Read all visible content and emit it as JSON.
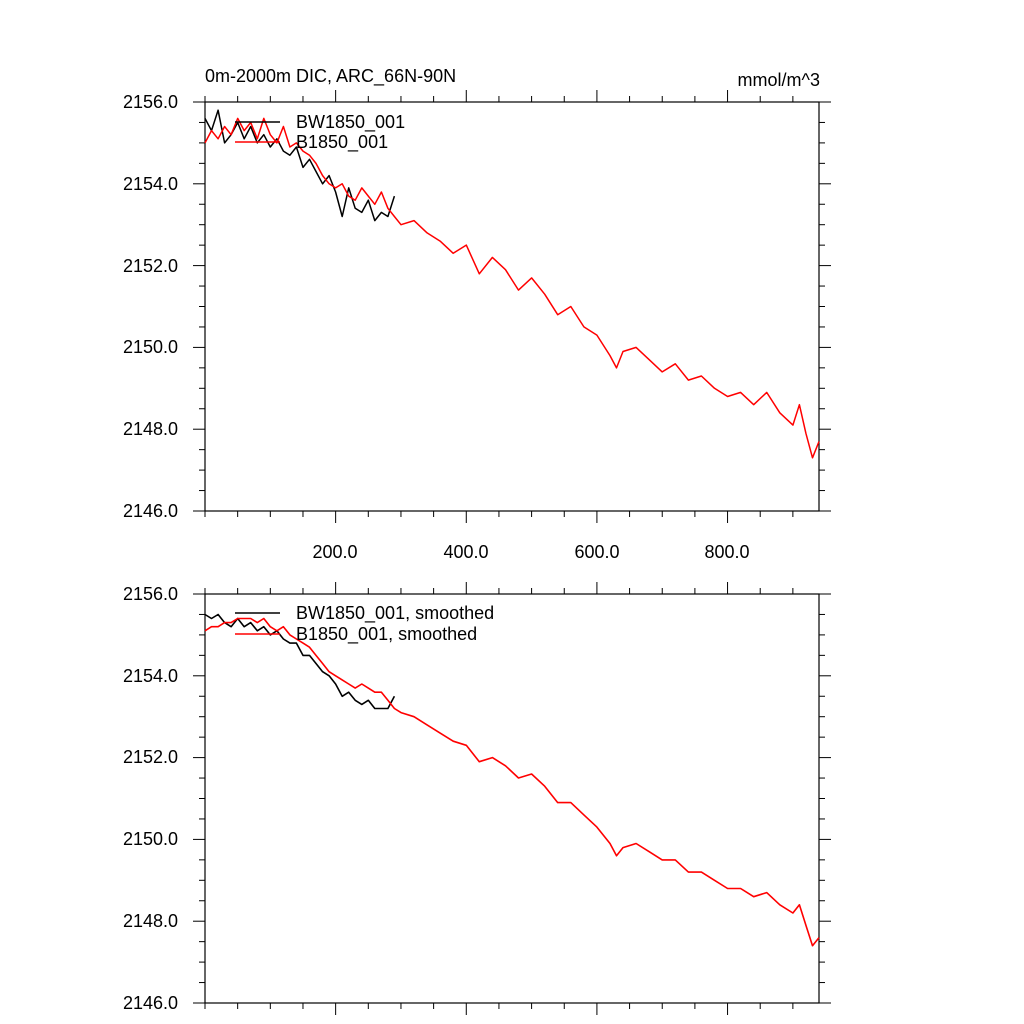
{
  "chart_data": [
    {
      "type": "line",
      "title": "0m-2000m DIC, ARC_66N-90N",
      "units": "mmol/m^3",
      "xlim": [
        0,
        940
      ],
      "ylim": [
        2146,
        2156
      ],
      "x_ticks": [
        200,
        400,
        600,
        800
      ],
      "x_tick_labels": [
        "200.0",
        "400.0",
        "600.0",
        "800.0"
      ],
      "y_ticks": [
        2146,
        2148,
        2150,
        2152,
        2154,
        2156
      ],
      "y_tick_labels": [
        "2146.0",
        "2148.0",
        "2150.0",
        "2152.0",
        "2154.0",
        "2156.0"
      ],
      "legend": [
        "BW1850_001",
        "B1850_001"
      ],
      "series": [
        {
          "name": "BW1850_001",
          "color": "#000000",
          "x": [
            0,
            10,
            20,
            30,
            40,
            50,
            60,
            70,
            80,
            90,
            100,
            110,
            120,
            130,
            140,
            150,
            160,
            170,
            180,
            190,
            200,
            210,
            220,
            230,
            240,
            250,
            260,
            270,
            280,
            290
          ],
          "y": [
            2155.6,
            2155.3,
            2155.8,
            2155.0,
            2155.2,
            2155.5,
            2155.1,
            2155.4,
            2155.0,
            2155.2,
            2154.9,
            2155.1,
            2154.8,
            2154.7,
            2154.9,
            2154.4,
            2154.6,
            2154.3,
            2154.0,
            2154.2,
            2153.8,
            2153.2,
            2153.9,
            2153.4,
            2153.3,
            2153.6,
            2153.1,
            2153.3,
            2153.2,
            2153.7
          ]
        },
        {
          "name": "B1850_001",
          "color": "#ff0000",
          "x": [
            0,
            10,
            20,
            30,
            40,
            50,
            60,
            70,
            80,
            90,
            100,
            110,
            120,
            130,
            140,
            150,
            160,
            170,
            180,
            190,
            200,
            210,
            220,
            230,
            240,
            250,
            260,
            270,
            280,
            290,
            300,
            320,
            340,
            360,
            380,
            400,
            420,
            440,
            460,
            480,
            500,
            520,
            540,
            560,
            580,
            600,
            620,
            630,
            640,
            660,
            680,
            700,
            720,
            740,
            760,
            780,
            800,
            820,
            840,
            860,
            880,
            900,
            910,
            920,
            930,
            940
          ],
          "y": [
            2155.0,
            2155.3,
            2155.1,
            2155.4,
            2155.2,
            2155.6,
            2155.3,
            2155.5,
            2155.1,
            2155.6,
            2155.2,
            2155.0,
            2155.4,
            2154.9,
            2155.0,
            2154.8,
            2154.7,
            2154.5,
            2154.2,
            2154.0,
            2153.9,
            2154.0,
            2153.7,
            2153.6,
            2153.9,
            2153.7,
            2153.5,
            2153.8,
            2153.4,
            2153.2,
            2153.0,
            2153.1,
            2152.8,
            2152.6,
            2152.3,
            2152.5,
            2151.8,
            2152.2,
            2151.9,
            2151.4,
            2151.7,
            2151.3,
            2150.8,
            2151.0,
            2150.5,
            2150.3,
            2149.8,
            2149.5,
            2149.9,
            2150.0,
            2149.7,
            2149.4,
            2149.6,
            2149.2,
            2149.3,
            2149.0,
            2148.8,
            2148.9,
            2148.6,
            2148.9,
            2148.4,
            2148.1,
            2148.6,
            2147.9,
            2147.3,
            2147.7
          ]
        }
      ]
    },
    {
      "type": "line",
      "title": "",
      "xlim": [
        0,
        940
      ],
      "ylim": [
        2146,
        2156
      ],
      "y_ticks": [
        2146,
        2148,
        2150,
        2152,
        2154,
        2156
      ],
      "y_tick_labels": [
        "2146.0",
        "2148.0",
        "2150.0",
        "2152.0",
        "2154.0",
        "2156.0"
      ],
      "legend": [
        "BW1850_001, smoothed",
        "B1850_001, smoothed"
      ],
      "series": [
        {
          "name": "BW1850_001, smoothed",
          "color": "#000000",
          "x": [
            0,
            10,
            20,
            30,
            40,
            50,
            60,
            70,
            80,
            90,
            100,
            110,
            120,
            130,
            140,
            150,
            160,
            170,
            180,
            190,
            200,
            210,
            220,
            230,
            240,
            250,
            260,
            270,
            280,
            290
          ],
          "y": [
            2155.5,
            2155.4,
            2155.5,
            2155.3,
            2155.2,
            2155.4,
            2155.2,
            2155.3,
            2155.1,
            2155.2,
            2155.0,
            2155.1,
            2154.9,
            2154.8,
            2154.8,
            2154.5,
            2154.5,
            2154.3,
            2154.1,
            2154.0,
            2153.8,
            2153.5,
            2153.6,
            2153.4,
            2153.3,
            2153.4,
            2153.2,
            2153.2,
            2153.2,
            2153.5
          ]
        },
        {
          "name": "B1850_001, smoothed",
          "color": "#ff0000",
          "x": [
            0,
            10,
            20,
            30,
            40,
            50,
            60,
            70,
            80,
            90,
            100,
            110,
            120,
            130,
            140,
            150,
            160,
            170,
            180,
            190,
            200,
            210,
            220,
            230,
            240,
            250,
            260,
            270,
            280,
            290,
            300,
            320,
            340,
            360,
            380,
            400,
            420,
            440,
            460,
            480,
            500,
            520,
            540,
            560,
            580,
            600,
            620,
            630,
            640,
            660,
            680,
            700,
            720,
            740,
            760,
            780,
            800,
            820,
            840,
            860,
            880,
            900,
            910,
            920,
            930,
            940
          ],
          "y": [
            2155.1,
            2155.2,
            2155.2,
            2155.3,
            2155.3,
            2155.4,
            2155.4,
            2155.4,
            2155.3,
            2155.4,
            2155.2,
            2155.1,
            2155.2,
            2155.0,
            2154.9,
            2154.8,
            2154.7,
            2154.5,
            2154.3,
            2154.1,
            2154.0,
            2153.9,
            2153.8,
            2153.7,
            2153.8,
            2153.7,
            2153.6,
            2153.6,
            2153.4,
            2153.2,
            2153.1,
            2153.0,
            2152.8,
            2152.6,
            2152.4,
            2152.3,
            2151.9,
            2152.0,
            2151.8,
            2151.5,
            2151.6,
            2151.3,
            2150.9,
            2150.9,
            2150.6,
            2150.3,
            2149.9,
            2149.6,
            2149.8,
            2149.9,
            2149.7,
            2149.5,
            2149.5,
            2149.2,
            2149.2,
            2149.0,
            2148.8,
            2148.8,
            2148.6,
            2148.7,
            2148.4,
            2148.2,
            2148.4,
            2147.9,
            2147.4,
            2147.6
          ]
        }
      ]
    }
  ]
}
